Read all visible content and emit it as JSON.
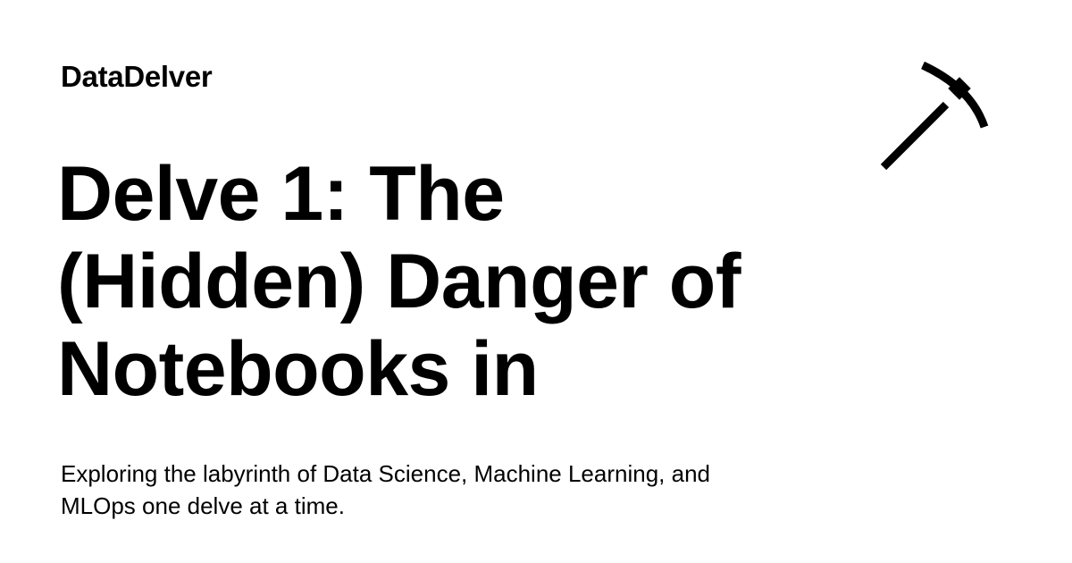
{
  "site": {
    "name": "DataDelver",
    "logo_icon": "pickaxe-icon"
  },
  "post": {
    "title": "Delve 1: The (Hidden) Danger of Notebooks in",
    "tagline": "Exploring the labyrinth of Data Science, Machine Learning, and MLOps one delve at a time."
  },
  "colors": {
    "background": "#ffffff",
    "text": "#000000"
  }
}
